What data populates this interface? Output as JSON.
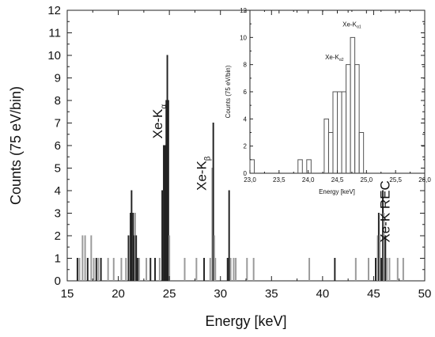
{
  "chart_data": [
    {
      "type": "bar",
      "xlabel": "Energy [keV]",
      "ylabel": "Counts (75 eV/bin)",
      "xlim": [
        15,
        50
      ],
      "ylim": [
        0,
        12
      ],
      "xticks": [
        "15",
        "20",
        "25",
        "30",
        "35",
        "40",
        "45",
        "50"
      ],
      "yticks": [
        "0",
        "1",
        "2",
        "3",
        "4",
        "5",
        "6",
        "7",
        "8",
        "9",
        "10",
        "11",
        "12"
      ],
      "histogram_style": "step histogram, dark and light grey bins",
      "bins": [
        {
          "x": 16.0,
          "y": 1,
          "shade": "dark"
        },
        {
          "x": 16.2,
          "y": 1,
          "shade": "light"
        },
        {
          "x": 16.5,
          "y": 2,
          "shade": "light"
        },
        {
          "x": 16.75,
          "y": 2,
          "shade": "light"
        },
        {
          "x": 17.0,
          "y": 1,
          "shade": "dark"
        },
        {
          "x": 17.35,
          "y": 2,
          "shade": "light"
        },
        {
          "x": 17.6,
          "y": 1,
          "shade": "light"
        },
        {
          "x": 17.85,
          "y": 1,
          "shade": "dark"
        },
        {
          "x": 18.05,
          "y": 1,
          "shade": "light"
        },
        {
          "x": 18.3,
          "y": 1,
          "shade": "dark"
        },
        {
          "x": 19.0,
          "y": 1,
          "shade": "light"
        },
        {
          "x": 19.55,
          "y": 1,
          "shade": "light"
        },
        {
          "x": 20.3,
          "y": 1,
          "shade": "light"
        },
        {
          "x": 20.75,
          "y": 1,
          "shade": "light"
        },
        {
          "x": 21.0,
          "y": 2,
          "shade": "dark"
        },
        {
          "x": 21.2,
          "y": 3,
          "shade": "dark"
        },
        {
          "x": 21.3,
          "y": 4,
          "shade": "dark"
        },
        {
          "x": 21.45,
          "y": 3,
          "shade": "dark"
        },
        {
          "x": 21.55,
          "y": 2,
          "shade": "dark"
        },
        {
          "x": 21.65,
          "y": 3,
          "shade": "light"
        },
        {
          "x": 21.75,
          "y": 2,
          "shade": "dark"
        },
        {
          "x": 21.9,
          "y": 1,
          "shade": "dark"
        },
        {
          "x": 22.05,
          "y": 1,
          "shade": "light"
        },
        {
          "x": 22.75,
          "y": 1,
          "shade": "light"
        },
        {
          "x": 23.15,
          "y": 1,
          "shade": "dark"
        },
        {
          "x": 23.6,
          "y": 1,
          "shade": "dark"
        },
        {
          "x": 24.05,
          "y": 1,
          "shade": "light"
        },
        {
          "x": 24.3,
          "y": 4,
          "shade": "dark"
        },
        {
          "x": 24.45,
          "y": 6,
          "shade": "dark"
        },
        {
          "x": 24.6,
          "y": 6,
          "shade": "dark"
        },
        {
          "x": 24.7,
          "y": 8,
          "shade": "dark"
        },
        {
          "x": 24.8,
          "y": 10,
          "shade": "dark"
        },
        {
          "x": 24.9,
          "y": 8,
          "shade": "dark"
        },
        {
          "x": 25.0,
          "y": 2,
          "shade": "light"
        },
        {
          "x": 26.5,
          "y": 1,
          "shade": "light"
        },
        {
          "x": 27.65,
          "y": 1,
          "shade": "light"
        },
        {
          "x": 28.4,
          "y": 1,
          "shade": "dark"
        },
        {
          "x": 29.0,
          "y": 1,
          "shade": "light"
        },
        {
          "x": 29.2,
          "y": 5,
          "shade": "light"
        },
        {
          "x": 29.3,
          "y": 7,
          "shade": "dark"
        },
        {
          "x": 29.4,
          "y": 2,
          "shade": "light"
        },
        {
          "x": 29.5,
          "y": 1,
          "shade": "light"
        },
        {
          "x": 30.7,
          "y": 1,
          "shade": "dark"
        },
        {
          "x": 30.85,
          "y": 4,
          "shade": "dark"
        },
        {
          "x": 31.0,
          "y": 1,
          "shade": "light"
        },
        {
          "x": 31.3,
          "y": 1,
          "shade": "light"
        },
        {
          "x": 31.5,
          "y": 1,
          "shade": "light"
        },
        {
          "x": 32.6,
          "y": 1,
          "shade": "light"
        },
        {
          "x": 33.25,
          "y": 1,
          "shade": "light"
        },
        {
          "x": 38.7,
          "y": 1,
          "shade": "light"
        },
        {
          "x": 41.2,
          "y": 1,
          "shade": "dark"
        },
        {
          "x": 43.25,
          "y": 1,
          "shade": "light"
        },
        {
          "x": 44.5,
          "y": 1,
          "shade": "light"
        },
        {
          "x": 45.2,
          "y": 1,
          "shade": "dark"
        },
        {
          "x": 45.4,
          "y": 2,
          "shade": "light"
        },
        {
          "x": 45.5,
          "y": 3,
          "shade": "dark"
        },
        {
          "x": 45.6,
          "y": 2,
          "shade": "light"
        },
        {
          "x": 45.75,
          "y": 1,
          "shade": "dark"
        },
        {
          "x": 45.9,
          "y": 4,
          "shade": "dark"
        },
        {
          "x": 46.0,
          "y": 3,
          "shade": "light"
        },
        {
          "x": 46.15,
          "y": 2,
          "shade": "dark"
        },
        {
          "x": 46.3,
          "y": 1,
          "shade": "light"
        },
        {
          "x": 46.55,
          "y": 1,
          "shade": "light"
        },
        {
          "x": 47.35,
          "y": 1,
          "shade": "light"
        },
        {
          "x": 47.9,
          "y": 1,
          "shade": "light"
        }
      ],
      "annotations": [
        {
          "base": "Xe-K",
          "sub": "α",
          "x": 24.3,
          "y": 6.3
        },
        {
          "base": "Xe-K",
          "sub": "β",
          "x": 28.6,
          "y": 4.0
        },
        {
          "base": "Xe-K REC",
          "sub": "",
          "x": 46.55,
          "y": 1.7
        }
      ],
      "inset": {
        "type": "bar",
        "xlabel": "Energy [keV]",
        "ylabel": "Counts (75 eV/bin)",
        "xlim": [
          23.0,
          26.0
        ],
        "ylim": [
          0,
          12
        ],
        "xticks": [
          "23,0",
          "23,5",
          "24,0",
          "24,5",
          "25,0",
          "25,5",
          "26,0"
        ],
        "yticks": [
          "0",
          "2",
          "4",
          "6",
          "8",
          "10",
          "12"
        ],
        "bins": [
          {
            "x": 23.0375,
            "y": 1
          },
          {
            "x": 23.8625,
            "y": 1
          },
          {
            "x": 24.0125,
            "y": 1
          },
          {
            "x": 24.3125,
            "y": 4
          },
          {
            "x": 24.3875,
            "y": 3
          },
          {
            "x": 24.4625,
            "y": 6
          },
          {
            "x": 24.5375,
            "y": 6
          },
          {
            "x": 24.6125,
            "y": 6
          },
          {
            "x": 24.6875,
            "y": 8
          },
          {
            "x": 24.7625,
            "y": 10
          },
          {
            "x": 24.8375,
            "y": 8
          },
          {
            "x": 24.9125,
            "y": 3
          }
        ],
        "annotations": [
          {
            "base": "Xe-K",
            "sub": "α2",
            "x": 24.45,
            "y": 8.4
          },
          {
            "base": "Xe-K",
            "sub": "α1",
            "x": 24.75,
            "y": 10.8
          }
        ]
      }
    }
  ]
}
